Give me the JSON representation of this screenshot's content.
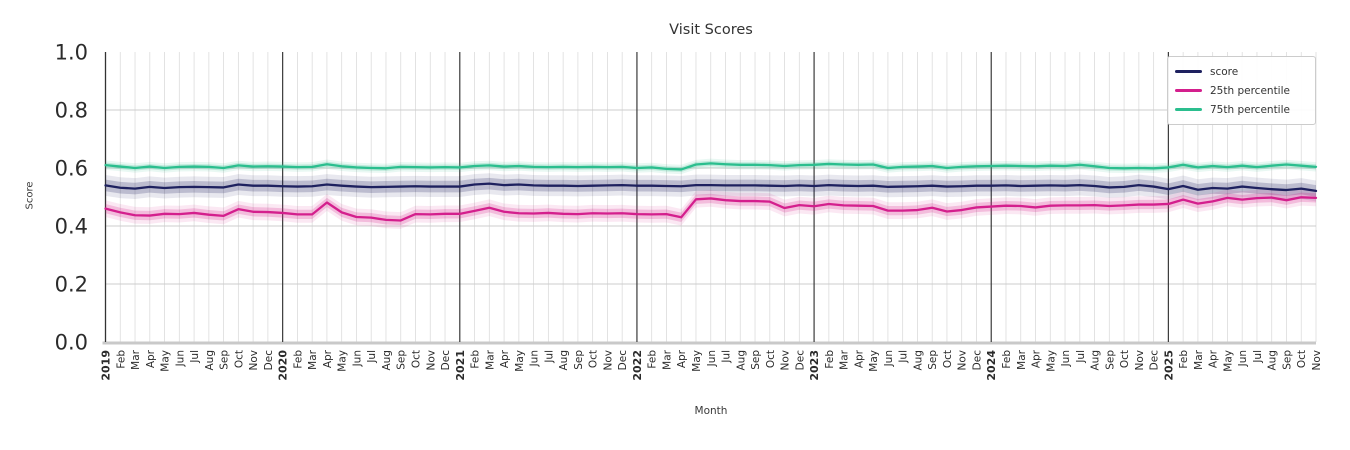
{
  "title": "Visit Scores",
  "xlabel": "Month",
  "ylabel": "Score",
  "chart_data": {
    "type": "line",
    "title": "Visit Scores",
    "xlabel": "Month",
    "ylabel": "Score",
    "ylim": [
      0.0,
      1.0
    ],
    "yticks": [
      "0.0",
      "0.2",
      "0.4",
      "0.6",
      "0.8",
      "1.0"
    ],
    "grid": true,
    "legend_position": "upper right",
    "x_labels": [
      "2019",
      "Feb",
      "Mar",
      "Apr",
      "May",
      "Jun",
      "Jul",
      "Aug",
      "Sep",
      "Oct",
      "Nov",
      "Dec",
      "2020",
      "Feb",
      "Mar",
      "Apr",
      "May",
      "Jun",
      "Jul",
      "Aug",
      "Sep",
      "Oct",
      "Nov",
      "Dec",
      "2021",
      "Feb",
      "Mar",
      "Apr",
      "May",
      "Jun",
      "Jul",
      "Aug",
      "Sep",
      "Oct",
      "Nov",
      "Dec",
      "2022",
      "Feb",
      "Mar",
      "Apr",
      "May",
      "Jun",
      "Jul",
      "Aug",
      "Sep",
      "Oct",
      "Nov",
      "Dec",
      "2023",
      "Feb",
      "Mar",
      "Apr",
      "May",
      "Jun",
      "Jul",
      "Aug",
      "Sep",
      "Oct",
      "Nov",
      "Dec",
      "2024",
      "Feb",
      "Mar",
      "Apr",
      "May",
      "Jun",
      "Jul",
      "Aug",
      "Sep",
      "Oct",
      "Nov",
      "Dec",
      "2025",
      "Feb",
      "Mar",
      "Apr",
      "May",
      "Jun",
      "Jul",
      "Aug",
      "Sep",
      "Oct",
      "Nov"
    ],
    "series": [
      {
        "name": "score",
        "color": "#1e215f",
        "band_halfwidth": 0.02,
        "values": [
          0.54,
          0.532,
          0.529,
          0.535,
          0.531,
          0.534,
          0.535,
          0.534,
          0.533,
          0.543,
          0.539,
          0.539,
          0.537,
          0.536,
          0.537,
          0.543,
          0.539,
          0.536,
          0.534,
          0.535,
          0.536,
          0.537,
          0.536,
          0.536,
          0.536,
          0.543,
          0.546,
          0.541,
          0.543,
          0.54,
          0.539,
          0.539,
          0.538,
          0.539,
          0.54,
          0.541,
          0.539,
          0.539,
          0.538,
          0.537,
          0.541,
          0.541,
          0.54,
          0.54,
          0.54,
          0.539,
          0.538,
          0.54,
          0.538,
          0.541,
          0.539,
          0.538,
          0.539,
          0.535,
          0.536,
          0.537,
          0.539,
          0.536,
          0.537,
          0.539,
          0.539,
          0.54,
          0.538,
          0.539,
          0.54,
          0.539,
          0.541,
          0.538,
          0.533,
          0.535,
          0.541,
          0.536,
          0.527,
          0.538,
          0.525,
          0.531,
          0.529,
          0.536,
          0.531,
          0.527,
          0.524,
          0.529,
          0.521
        ]
      },
      {
        "name": "25th percentile",
        "color": "#d41f8d",
        "band_halfwidth": 0.016,
        "values": [
          0.46,
          0.447,
          0.437,
          0.436,
          0.442,
          0.441,
          0.445,
          0.439,
          0.435,
          0.458,
          0.449,
          0.448,
          0.445,
          0.44,
          0.44,
          0.481,
          0.447,
          0.431,
          0.429,
          0.421,
          0.419,
          0.441,
          0.44,
          0.442,
          0.442,
          0.452,
          0.463,
          0.449,
          0.444,
          0.443,
          0.445,
          0.442,
          0.441,
          0.444,
          0.443,
          0.444,
          0.441,
          0.44,
          0.441,
          0.43,
          0.492,
          0.495,
          0.489,
          0.486,
          0.486,
          0.484,
          0.462,
          0.472,
          0.468,
          0.476,
          0.471,
          0.47,
          0.469,
          0.453,
          0.453,
          0.455,
          0.463,
          0.45,
          0.455,
          0.464,
          0.467,
          0.47,
          0.469,
          0.464,
          0.47,
          0.471,
          0.471,
          0.472,
          0.469,
          0.471,
          0.474,
          0.474,
          0.476,
          0.491,
          0.477,
          0.485,
          0.497,
          0.491,
          0.496,
          0.498,
          0.489,
          0.499,
          0.497
        ]
      },
      {
        "name": "75th percentile",
        "color": "#2bbe8e",
        "band_halfwidth": 0.009,
        "values": [
          0.61,
          0.605,
          0.6,
          0.605,
          0.6,
          0.604,
          0.605,
          0.604,
          0.6,
          0.609,
          0.605,
          0.606,
          0.605,
          0.603,
          0.604,
          0.613,
          0.606,
          0.602,
          0.6,
          0.599,
          0.604,
          0.603,
          0.602,
          0.603,
          0.602,
          0.607,
          0.609,
          0.605,
          0.607,
          0.604,
          0.603,
          0.604,
          0.603,
          0.604,
          0.603,
          0.604,
          0.6,
          0.602,
          0.597,
          0.595,
          0.612,
          0.616,
          0.613,
          0.611,
          0.611,
          0.61,
          0.607,
          0.61,
          0.611,
          0.614,
          0.612,
          0.611,
          0.612,
          0.6,
          0.604,
          0.605,
          0.607,
          0.6,
          0.604,
          0.606,
          0.607,
          0.608,
          0.607,
          0.606,
          0.608,
          0.607,
          0.611,
          0.606,
          0.6,
          0.599,
          0.6,
          0.599,
          0.602,
          0.611,
          0.602,
          0.607,
          0.603,
          0.608,
          0.603,
          0.608,
          0.612,
          0.608,
          0.604
        ]
      }
    ]
  }
}
